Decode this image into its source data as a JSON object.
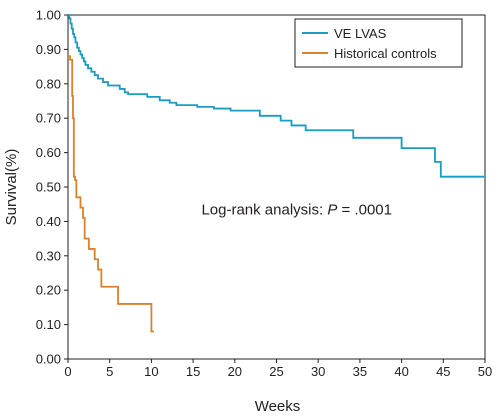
{
  "chart_data": {
    "type": "line",
    "step": true,
    "title": "",
    "xlabel": "Weeks",
    "ylabel": "Survival(%)",
    "xlim": [
      0,
      50
    ],
    "ylim": [
      0,
      1.0
    ],
    "x_ticks": [
      0,
      5,
      10,
      15,
      20,
      25,
      30,
      35,
      40,
      45,
      50
    ],
    "x_tick_labels": [
      "0",
      "5",
      "10",
      "15",
      "20",
      "25",
      "30",
      "35",
      "40",
      "45",
      "50"
    ],
    "y_ticks": [
      0,
      0.1,
      0.2,
      0.3,
      0.4,
      0.5,
      0.6,
      0.7,
      0.8,
      0.9,
      1.0
    ],
    "y_tick_labels": [
      "0.00",
      "0.10",
      "0.20",
      "0.30",
      "0.40",
      "0.50",
      "0.60",
      "0.70",
      "0.80",
      "0.90",
      "1.00"
    ],
    "grid": false,
    "legend_position": "top-right",
    "annotation": {
      "prefix": "Log-rank analysis: ",
      "italic": "P",
      "suffix": " = .0001",
      "x": 16,
      "y": 0.42
    },
    "series": [
      {
        "name": "VE LVAS",
        "color": "#1a9bbf",
        "points": [
          [
            0,
            1.0
          ],
          [
            0.15,
            0.99
          ],
          [
            0.3,
            0.975
          ],
          [
            0.45,
            0.96
          ],
          [
            0.6,
            0.945
          ],
          [
            0.75,
            0.935
          ],
          [
            0.9,
            0.92
          ],
          [
            1.1,
            0.905
          ],
          [
            1.3,
            0.895
          ],
          [
            1.5,
            0.885
          ],
          [
            1.7,
            0.875
          ],
          [
            1.9,
            0.865
          ],
          [
            2.1,
            0.855
          ],
          [
            2.4,
            0.845
          ],
          [
            2.8,
            0.835
          ],
          [
            3.2,
            0.825
          ],
          [
            3.6,
            0.815
          ],
          [
            4.2,
            0.805
          ],
          [
            4.8,
            0.795
          ],
          [
            6.2,
            0.785
          ],
          [
            6.8,
            0.775
          ],
          [
            7.2,
            0.77
          ],
          [
            9.5,
            0.762
          ],
          [
            11.0,
            0.752
          ],
          [
            12.2,
            0.745
          ],
          [
            13.0,
            0.738
          ],
          [
            15.5,
            0.733
          ],
          [
            17.5,
            0.728
          ],
          [
            19.5,
            0.722
          ],
          [
            23.0,
            0.707
          ],
          [
            25.5,
            0.693
          ],
          [
            26.8,
            0.679
          ],
          [
            28.5,
            0.665
          ],
          [
            34.2,
            0.643
          ],
          [
            40.0,
            0.613
          ],
          [
            44.0,
            0.573
          ],
          [
            44.7,
            0.53
          ],
          [
            50,
            0.53
          ]
        ]
      },
      {
        "name": "Historical controls",
        "color": "#d9822b",
        "points": [
          [
            0,
            0.88
          ],
          [
            0.25,
            0.87
          ],
          [
            0.5,
            0.765
          ],
          [
            0.6,
            0.7
          ],
          [
            0.7,
            0.53
          ],
          [
            0.85,
            0.52
          ],
          [
            1.0,
            0.47
          ],
          [
            1.5,
            0.44
          ],
          [
            1.8,
            0.41
          ],
          [
            2.0,
            0.35
          ],
          [
            2.5,
            0.32
          ],
          [
            3.2,
            0.29
          ],
          [
            3.6,
            0.26
          ],
          [
            4.0,
            0.21
          ],
          [
            6.0,
            0.16
          ],
          [
            10.0,
            0.08
          ],
          [
            10.3,
            0.08
          ]
        ]
      }
    ]
  }
}
